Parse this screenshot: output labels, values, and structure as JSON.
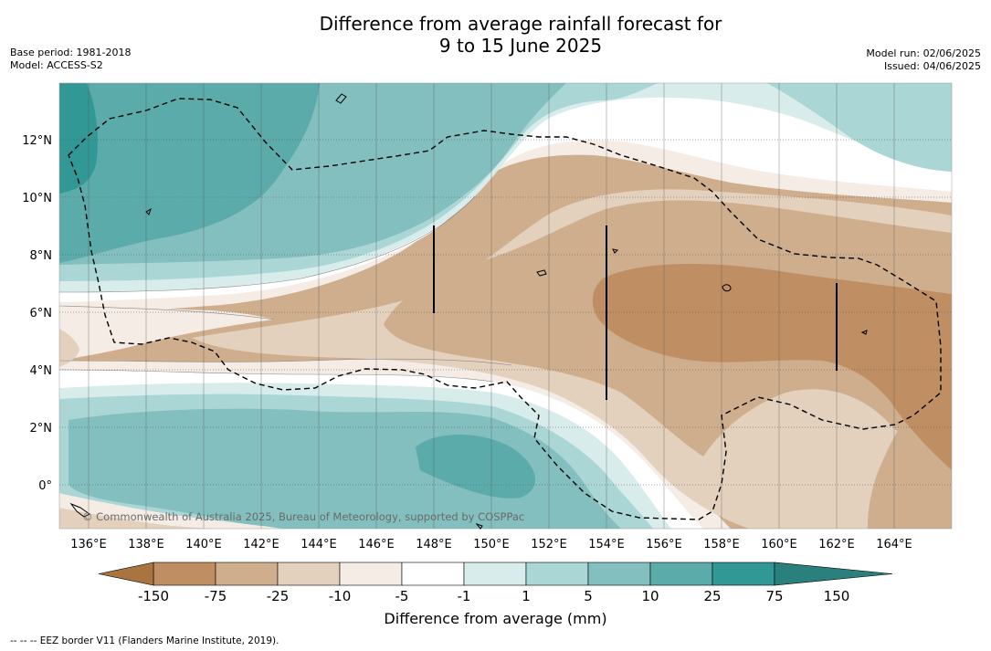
{
  "title_line1": "Difference from average rainfall forecast for",
  "title_line2": "9 to 15 June 2025",
  "base_period": "Base period: 1981-2018",
  "model": "Model: ACCESS-S2",
  "model_run": "Model run: 02/06/2025",
  "issued": "Issued: 04/06/2025",
  "copyright": "© Commonwealth of Australia 2025, Bureau of Meteorology, supported by COSPPac",
  "lat_labels": [
    "12°N",
    "10°N",
    "8°N",
    "6°N",
    "4°N",
    "2°N",
    "0°"
  ],
  "lon_labels": [
    "136°E",
    "138°E",
    "140°E",
    "142°E",
    "144°E",
    "146°E",
    "148°E",
    "150°E",
    "152°E",
    "154°E",
    "156°E",
    "158°E",
    "160°E",
    "162°E",
    "164°E"
  ],
  "colorbar": {
    "label": "Difference from average (mm)",
    "ticks": [
      "-150",
      "-75",
      "-25",
      "-10",
      "-5",
      "-1",
      "1",
      "5",
      "10",
      "25",
      "75",
      "150"
    ],
    "colors": [
      "#a87440",
      "#bf8f63",
      "#ceae8d",
      "#e3d0bd",
      "#f5ece6",
      "#ffffff",
      "#d8eceb",
      "#aad6d5",
      "#82bfbe",
      "#5aabaa",
      "#329895",
      "#2a807d"
    ]
  },
  "legend_note": "-- -- -- EEZ border V11 (Flanders Marine Institute, 2019)."
}
